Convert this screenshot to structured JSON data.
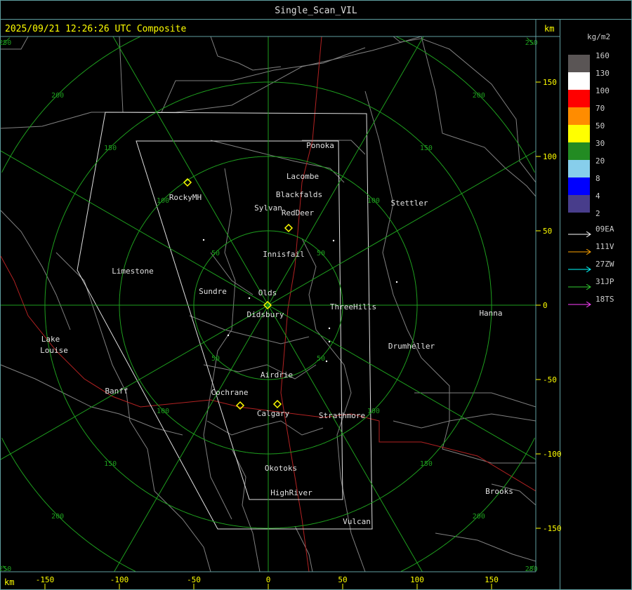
{
  "window": {
    "title": "Single_Scan_VIL"
  },
  "map": {
    "timestamp_label": "2025/09/21 12:26:26 UTC Composite",
    "unit_top_right": "km",
    "unit_bottom_left": "km",
    "range_ring_labels": [
      "50",
      "100",
      "150",
      "200",
      "250"
    ],
    "x_axis_ticks": [
      "-150",
      "-100",
      "-50",
      "0",
      "50",
      "100",
      "150"
    ],
    "y_axis_ticks": [
      "150",
      "100",
      "50",
      "0",
      "-50",
      "-100",
      "-150"
    ],
    "places": [
      "Ponoka",
      "Lacombe",
      "Blackfalds",
      "Sylvan",
      "RedDeer",
      "Stettler",
      "RockyMH",
      "Innisfail",
      "Limestone",
      "Sundre",
      "Olds",
      "Didsbury",
      "ThreeHills",
      "Hanna",
      "Drumheller",
      "Lake",
      "Louise",
      "Airdrie",
      "Banff",
      "Cochrane",
      "Calgary",
      "Strathmore",
      "Okotoks",
      "HighRiver",
      "Brooks",
      "Vulcan"
    ],
    "colors": {
      "rings": "#1e9e1e",
      "boundaries": "#808080",
      "roads": "#b22222",
      "domain": "#e0e0e0",
      "sites": "#ffff00",
      "labels": "#e0e0e0"
    }
  },
  "legend": {
    "unit": "kg/m2",
    "bins": [
      {
        "label": "160",
        "color": "#5a5555"
      },
      {
        "label": "130",
        "color": "#ffffff"
      },
      {
        "label": "100",
        "color": "#ff0000"
      },
      {
        "label": "70",
        "color": "#ff8c00"
      },
      {
        "label": "50",
        "color": "#ffff00"
      },
      {
        "label": "30",
        "color": "#228b22"
      },
      {
        "label": "20",
        "color": "#87ceeb"
      },
      {
        "label": "8",
        "color": "#0000ff"
      },
      {
        "label": "4",
        "color": "#483d8b"
      },
      {
        "label": "2",
        "color": null
      }
    ],
    "radars": [
      {
        "label": "09EA",
        "color": "#ffffff"
      },
      {
        "label": "111V",
        "color": "#ffa500"
      },
      {
        "label": "27ZW",
        "color": "#00ffff"
      },
      {
        "label": "31JP",
        "color": "#32cd32"
      },
      {
        "label": "18TS",
        "color": "#ff40ff"
      }
    ]
  }
}
